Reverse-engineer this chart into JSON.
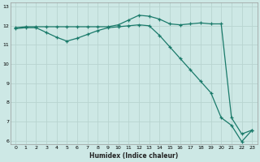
{
  "xlabel": "Humidex (Indice chaleur)",
  "background_color": "#cde8e5",
  "grid_color": "#b8d4d0",
  "line_color": "#1a7a6a",
  "xlim": [
    -0.5,
    23.5
  ],
  "ylim": [
    5.8,
    13.2
  ],
  "yticks": [
    6,
    7,
    8,
    9,
    10,
    11,
    12,
    13
  ],
  "xticks": [
    0,
    1,
    2,
    3,
    4,
    5,
    6,
    7,
    8,
    9,
    10,
    11,
    12,
    13,
    14,
    15,
    16,
    17,
    18,
    19,
    20,
    21,
    22,
    23
  ],
  "series1_x": [
    0,
    1,
    2,
    3,
    4,
    5,
    6,
    7,
    8,
    9,
    10,
    11,
    12,
    13,
    14,
    15,
    16,
    17,
    18,
    19,
    20,
    21,
    22,
    23
  ],
  "series1_y": [
    11.9,
    11.95,
    11.95,
    11.95,
    11.95,
    11.95,
    11.95,
    11.95,
    11.95,
    11.95,
    12.05,
    12.3,
    12.55,
    12.5,
    12.35,
    12.1,
    12.05,
    12.1,
    12.15,
    12.1,
    12.1,
    7.2,
    6.35,
    6.55
  ],
  "series2_x": [
    0,
    1,
    2,
    3,
    4,
    5,
    6,
    7,
    8,
    9,
    10,
    11,
    12,
    13,
    14,
    15,
    16,
    17,
    18,
    19,
    20,
    21,
    22,
    23
  ],
  "series2_y": [
    11.85,
    11.9,
    11.9,
    11.65,
    11.4,
    11.2,
    11.35,
    11.55,
    11.75,
    11.9,
    11.95,
    12.0,
    12.05,
    12.0,
    11.5,
    10.9,
    10.3,
    9.7,
    9.1,
    8.5,
    7.2,
    6.8,
    5.95,
    6.55
  ]
}
